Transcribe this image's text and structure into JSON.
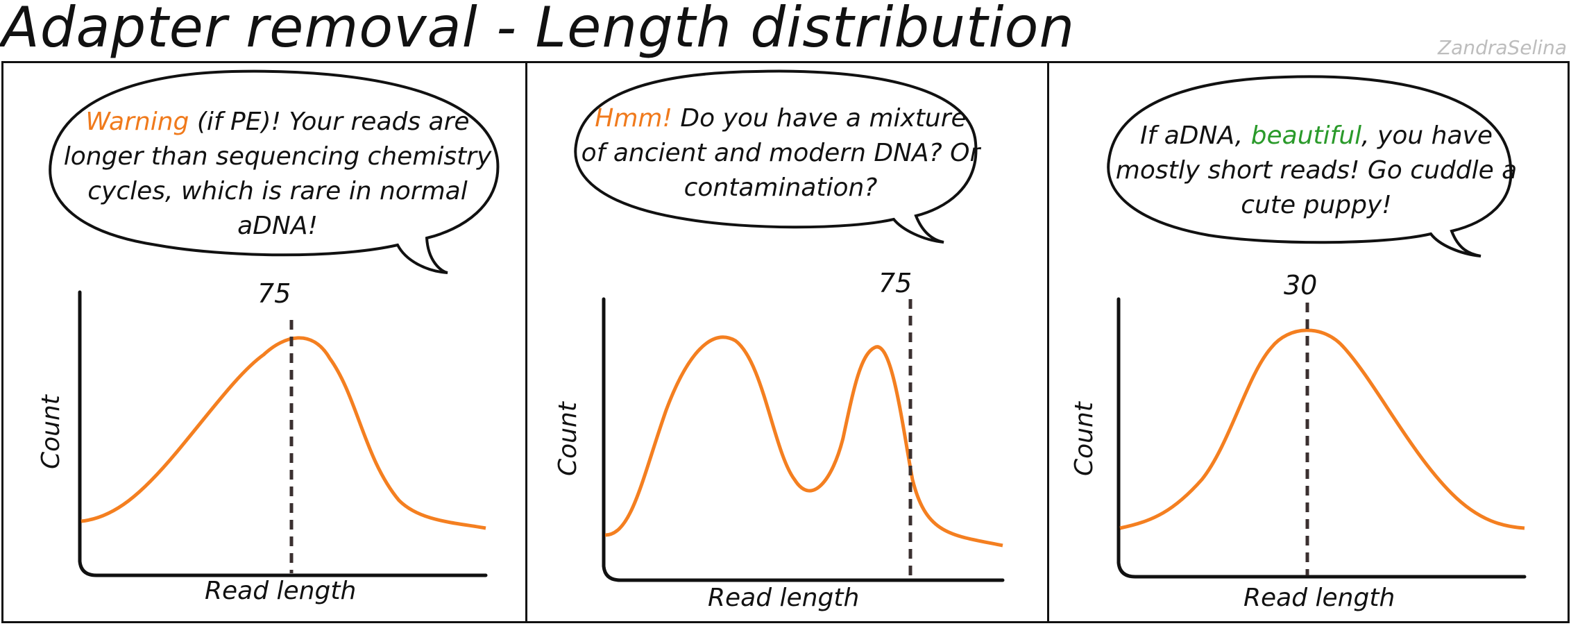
{
  "header": {
    "title": "Adapter removal - Length distribution",
    "signature": "ZandraSelina"
  },
  "panels": [
    {
      "bubble": {
        "highlight": "Warning",
        "text": " (if PE)! Your reads are longer than sequencing chemistry cycles, which is rare in normal aDNA!"
      },
      "peak_label": "75",
      "x_label": "Read length",
      "y_label": "Count"
    },
    {
      "bubble": {
        "highlight": "Hmm!",
        "text": " Do you have a mixture of ancient and modern DNA? Or contamination?"
      },
      "peak_label": "75",
      "x_label": "Read length",
      "y_label": "Count"
    },
    {
      "bubble": {
        "pre": "If aDNA, ",
        "highlight": "beautiful",
        "text": ", you have mostly short reads! Go cuddle a cute puppy!"
      },
      "peak_label": "30",
      "x_label": "Read length",
      "y_label": "Count"
    }
  ],
  "colors": {
    "curve": "#f47f20",
    "highlight_warning": "#f07a1c",
    "highlight_beautiful": "#2a9a2a",
    "dashed_line": "#3b3030"
  }
}
